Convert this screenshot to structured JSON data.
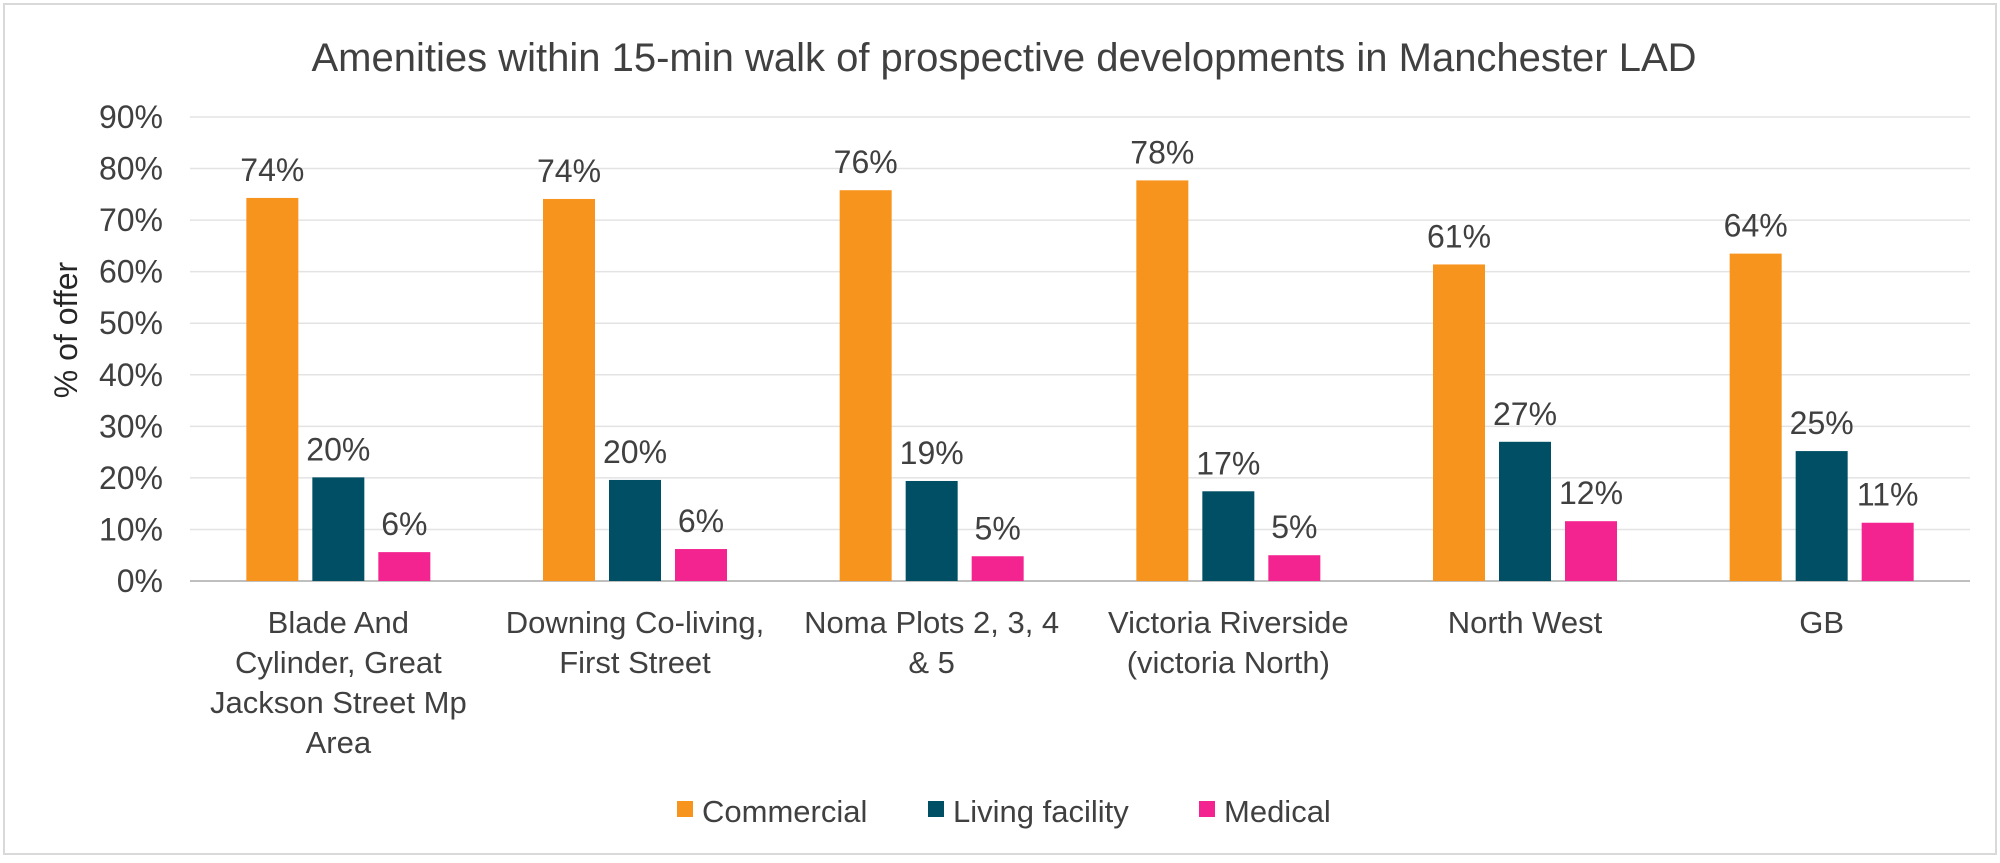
{
  "chart_data": {
    "type": "bar",
    "title": "Amenities within 15-min walk of prospective developments in Manchester LAD",
    "xlabel": "",
    "ylabel": "% of offer",
    "ylim": [
      0,
      90
    ],
    "yticks": [
      "0%",
      "10%",
      "20%",
      "30%",
      "40%",
      "50%",
      "60%",
      "70%",
      "80%",
      "90%"
    ],
    "grid": true,
    "legend_position": "bottom",
    "categories": [
      [
        "Blade And",
        "Cylinder, Great",
        "Jackson Street Mp",
        "Area"
      ],
      [
        "Downing Co-living,",
        "First Street"
      ],
      [
        "Noma Plots 2, 3, 4",
        "& 5"
      ],
      [
        "Victoria Riverside",
        "(victoria North)"
      ],
      [
        "North West"
      ],
      [
        "GB"
      ]
    ],
    "series": [
      {
        "name": "Commercial",
        "color": "#F7941D",
        "values": [
          74.3,
          74.1,
          75.8,
          77.7,
          61.4,
          63.5
        ],
        "labels": [
          "74%",
          "74%",
          "76%",
          "78%",
          "61%",
          "64%"
        ]
      },
      {
        "name": "Living facility",
        "color": "#004F64",
        "values": [
          20.1,
          19.6,
          19.4,
          17.4,
          27.0,
          25.2
        ],
        "labels": [
          "20%",
          "20%",
          "19%",
          "17%",
          "27%",
          "25%"
        ]
      },
      {
        "name": "Medical",
        "color": "#F3238F",
        "values": [
          5.6,
          6.2,
          4.8,
          5.0,
          11.6,
          11.3
        ],
        "labels": [
          "6%",
          "6%",
          "5%",
          "5%",
          "12%",
          "11%"
        ]
      }
    ]
  }
}
